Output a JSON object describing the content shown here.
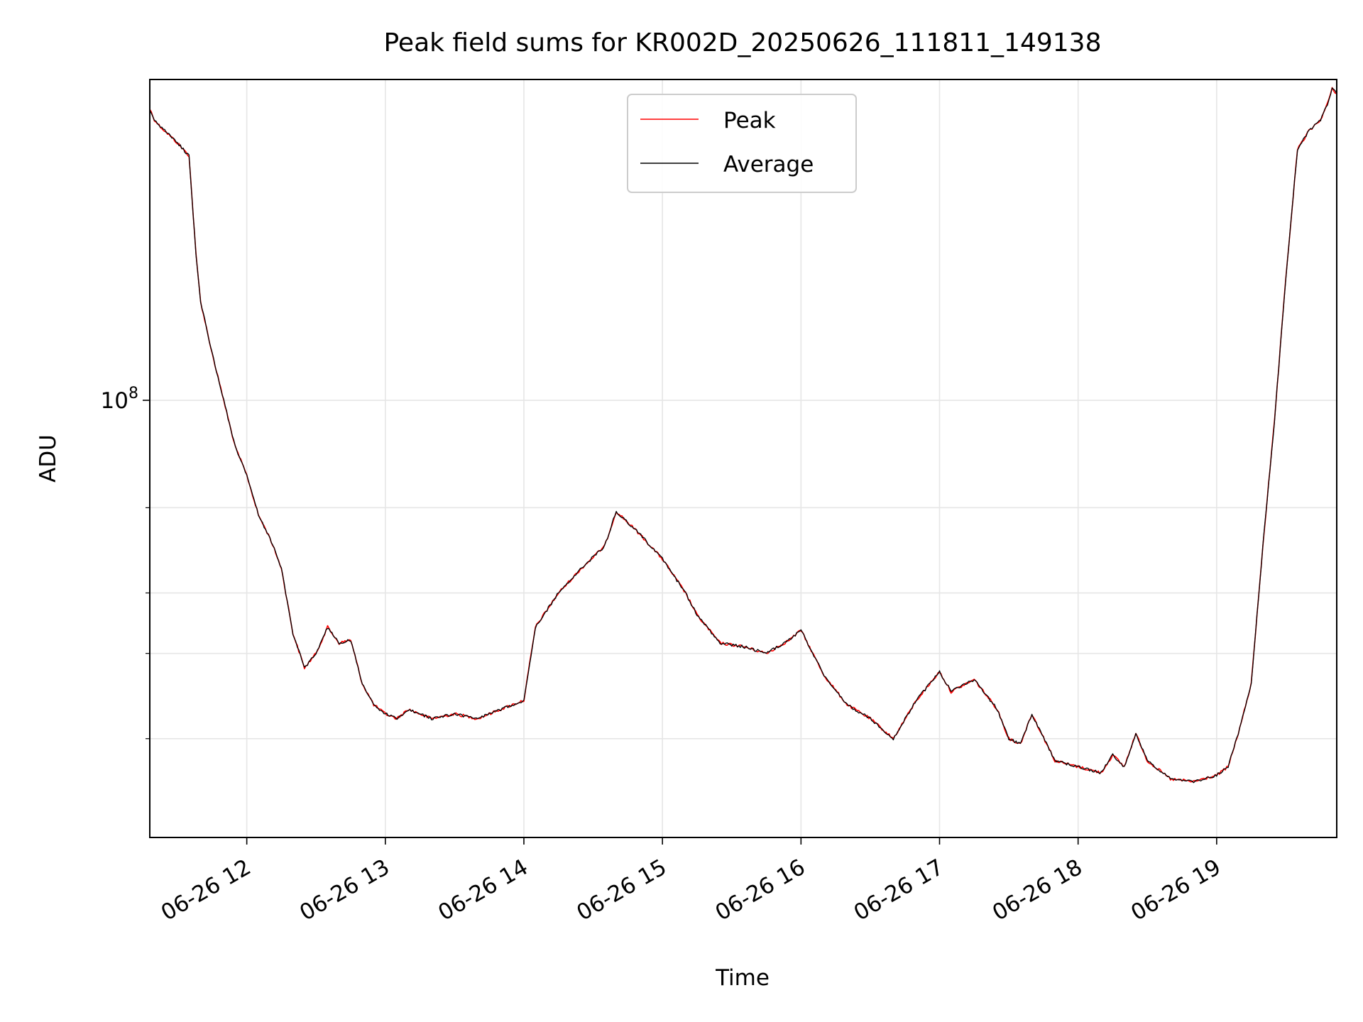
{
  "chart_data": {
    "type": "line",
    "title": "Peak field sums for KR002D_20250626_111811_149138",
    "xlabel": "Time",
    "ylabel": "ADU",
    "yscale": "log",
    "grid": true,
    "legend_placement": "upper-center",
    "xlim": [
      "2025-06-26 11:18",
      "2025-06-26 19:52"
    ],
    "ylim": [
      12500000,
      460000000
    ],
    "x_ticks": [
      {
        "value": "2025-06-26 12:00",
        "label": "06-26 12"
      },
      {
        "value": "2025-06-26 13:00",
        "label": "06-26 13"
      },
      {
        "value": "2025-06-26 14:00",
        "label": "06-26 14"
      },
      {
        "value": "2025-06-26 15:00",
        "label": "06-26 15"
      },
      {
        "value": "2025-06-26 16:00",
        "label": "06-26 16"
      },
      {
        "value": "2025-06-26 17:00",
        "label": "06-26 17"
      },
      {
        "value": "2025-06-26 18:00",
        "label": "06-26 18"
      },
      {
        "value": "2025-06-26 19:00",
        "label": "06-26 19"
      }
    ],
    "y_major_ticks": [
      {
        "value": 100000000,
        "base": "10",
        "exp": "8"
      }
    ],
    "y_minor_ticks": [
      20000000,
      30000000,
      40000000,
      60000000
    ],
    "x": [
      "2025-06-26 11:18",
      "2025-06-26 11:20",
      "2025-06-26 11:22",
      "2025-06-26 11:30",
      "2025-06-26 11:35",
      "2025-06-26 11:38",
      "2025-06-26 11:40",
      "2025-06-26 11:45",
      "2025-06-26 11:50",
      "2025-06-26 11:55",
      "2025-06-26 11:58",
      "2025-06-26 12:00",
      "2025-06-26 12:05",
      "2025-06-26 12:10",
      "2025-06-26 12:15",
      "2025-06-26 12:20",
      "2025-06-26 12:25",
      "2025-06-26 12:30",
      "2025-06-26 12:35",
      "2025-06-26 12:40",
      "2025-06-26 12:45",
      "2025-06-26 12:50",
      "2025-06-26 12:55",
      "2025-06-26 13:00",
      "2025-06-26 13:05",
      "2025-06-26 13:10",
      "2025-06-26 13:20",
      "2025-06-26 13:30",
      "2025-06-26 13:40",
      "2025-06-26 13:50",
      "2025-06-26 14:00",
      "2025-06-26 14:05",
      "2025-06-26 14:15",
      "2025-06-26 14:25",
      "2025-06-26 14:35",
      "2025-06-26 14:40",
      "2025-06-26 14:50",
      "2025-06-26 15:00",
      "2025-06-26 15:10",
      "2025-06-26 15:15",
      "2025-06-26 15:25",
      "2025-06-26 15:35",
      "2025-06-26 15:45",
      "2025-06-26 15:55",
      "2025-06-26 16:00",
      "2025-06-26 16:10",
      "2025-06-26 16:20",
      "2025-06-26 16:30",
      "2025-06-26 16:40",
      "2025-06-26 16:50",
      "2025-06-26 17:00",
      "2025-06-26 17:05",
      "2025-06-26 17:15",
      "2025-06-26 17:25",
      "2025-06-26 17:30",
      "2025-06-26 17:35",
      "2025-06-26 17:40",
      "2025-06-26 17:50",
      "2025-06-26 18:00",
      "2025-06-26 18:10",
      "2025-06-26 18:15",
      "2025-06-26 18:20",
      "2025-06-26 18:25",
      "2025-06-26 18:30",
      "2025-06-26 18:40",
      "2025-06-26 18:50",
      "2025-06-26 19:00",
      "2025-06-26 19:05",
      "2025-06-26 19:10",
      "2025-06-26 19:15",
      "2025-06-26 19:20",
      "2025-06-26 19:25",
      "2025-06-26 19:30",
      "2025-06-26 19:35",
      "2025-06-26 19:40",
      "2025-06-26 19:45",
      "2025-06-26 19:48",
      "2025-06-26 19:50",
      "2025-06-26 19:52"
    ],
    "series": [
      {
        "name": "Peak",
        "color": "#ff0000",
        "values": [
          400000000,
          380000000,
          370000000,
          340000000,
          320000000,
          200000000,
          160000000,
          125000000,
          100000000,
          80000000,
          74000000,
          70000000,
          58000000,
          52000000,
          45000000,
          33000000,
          28000000,
          30000000,
          34000000,
          31500000,
          32000000,
          26000000,
          23500000,
          22500000,
          22000000,
          23000000,
          22000000,
          22500000,
          22000000,
          23000000,
          24000000,
          34000000,
          40000000,
          45000000,
          50000000,
          59000000,
          53000000,
          47000000,
          40000000,
          36000000,
          31500000,
          31000000,
          30000000,
          32000000,
          33500000,
          27000000,
          23500000,
          22000000,
          20000000,
          24000000,
          27500000,
          25000000,
          26500000,
          23000000,
          20000000,
          19500000,
          22500000,
          18000000,
          17500000,
          17000000,
          18500000,
          17500000,
          20500000,
          18000000,
          16500000,
          16300000,
          16800000,
          17500000,
          21000000,
          26000000,
          50000000,
          90000000,
          180000000,
          330000000,
          360000000,
          380000000,
          410000000,
          440000000,
          430000000
        ]
      },
      {
        "name": "Average",
        "color": "#000000",
        "values": [
          400000000,
          380000000,
          370000000,
          340000000,
          320000000,
          200000000,
          160000000,
          125000000,
          100000000,
          80000000,
          74000000,
          70000000,
          58000000,
          52000000,
          45000000,
          33000000,
          28000000,
          30000000,
          34000000,
          31500000,
          32000000,
          26000000,
          23500000,
          22500000,
          22000000,
          23000000,
          22000000,
          22500000,
          22000000,
          23000000,
          24000000,
          34000000,
          40000000,
          45000000,
          50000000,
          59000000,
          53000000,
          47000000,
          40000000,
          36000000,
          31500000,
          31000000,
          30000000,
          32000000,
          33500000,
          27000000,
          23500000,
          22000000,
          20000000,
          24000000,
          27500000,
          25000000,
          26500000,
          23000000,
          20000000,
          19500000,
          22500000,
          18000000,
          17500000,
          17000000,
          18500000,
          17500000,
          20500000,
          18000000,
          16500000,
          16300000,
          16800000,
          17500000,
          21000000,
          26000000,
          50000000,
          90000000,
          180000000,
          330000000,
          360000000,
          380000000,
          410000000,
          440000000,
          430000000
        ]
      }
    ]
  }
}
